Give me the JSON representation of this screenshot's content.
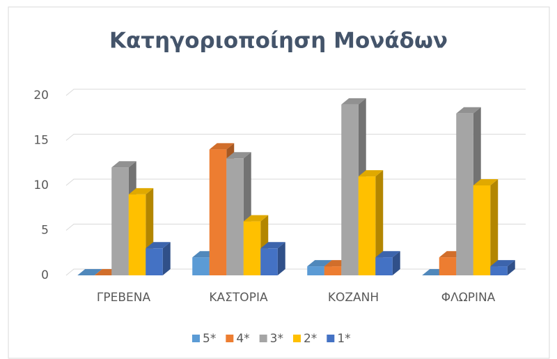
{
  "chart_data": {
    "type": "bar3d",
    "title": "Κατηγοριοποίηση Μονάδων",
    "categories": [
      "ΓΡΕΒΕΝΑ",
      "ΚΑΣΤΟΡΙΑ",
      "ΚΟΖΑΝΗ",
      "ΦΛΩΡΙΝΑ"
    ],
    "series": [
      {
        "name": "5*",
        "color": "#5b9bd5",
        "values": [
          0,
          2,
          1,
          0
        ]
      },
      {
        "name": "4*",
        "color": "#ed7d31",
        "values": [
          0,
          14,
          1,
          2
        ]
      },
      {
        "name": "3*",
        "color": "#a5a5a5",
        "values": [
          12,
          13,
          19,
          18
        ]
      },
      {
        "name": "2*",
        "color": "#ffc000",
        "values": [
          9,
          6,
          11,
          10
        ]
      },
      {
        "name": "1*",
        "color": "#4472c4",
        "values": [
          3,
          3,
          2,
          1
        ]
      }
    ],
    "ylim": [
      0,
      20
    ],
    "yticks": [
      0,
      5,
      10,
      15,
      20
    ],
    "grid": true,
    "legend": "bottom"
  }
}
